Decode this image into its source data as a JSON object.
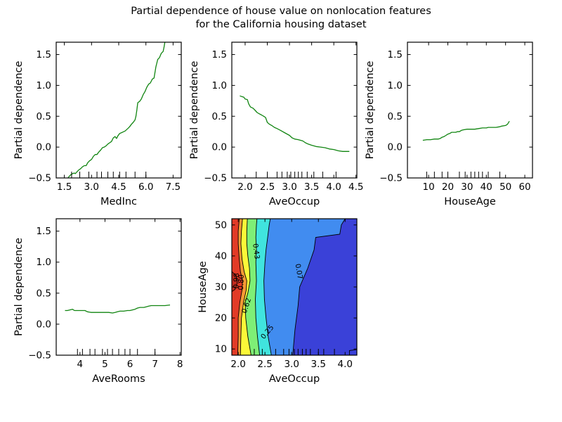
{
  "figure": {
    "title_line1": "Partial dependence of house value on nonlocation features",
    "title_line2": "for the California housing dataset",
    "background_color": "#ffffff",
    "line_color": "#118511",
    "axis_color": "#000000"
  },
  "chart_data": [
    {
      "id": "MedInc",
      "type": "line",
      "title": "",
      "xlabel": "MedInc",
      "ylabel": "Partial dependence",
      "xlim": [
        1.05,
        7.95
      ],
      "ylim": [
        -0.5,
        1.7
      ],
      "xticks": [
        1.5,
        3.0,
        4.5,
        6.0,
        7.5
      ],
      "xtick_labels": [
        "1.5",
        "3.0",
        "4.5",
        "6.0",
        "7.5"
      ],
      "yticks": [
        -0.5,
        0.0,
        0.5,
        1.0,
        1.5
      ],
      "ytick_labels": [
        "−0.5",
        "0.0",
        "0.5",
        "1.0",
        "1.5"
      ],
      "deciles": [
        1.9,
        2.35,
        2.85,
        3.3,
        3.55,
        3.9,
        4.2,
        4.55,
        4.9,
        5.4,
        6.0
      ],
      "points": [
        [
          1.63,
          -0.52
        ],
        [
          1.7,
          -0.5
        ],
        [
          1.78,
          -0.47
        ],
        [
          1.85,
          -0.45
        ],
        [
          1.95,
          -0.43
        ],
        [
          2.05,
          -0.42
        ],
        [
          2.1,
          -0.43
        ],
        [
          2.2,
          -0.4
        ],
        [
          2.3,
          -0.37
        ],
        [
          2.4,
          -0.35
        ],
        [
          2.5,
          -0.32
        ],
        [
          2.6,
          -0.3
        ],
        [
          2.7,
          -0.3
        ],
        [
          2.8,
          -0.25
        ],
        [
          2.9,
          -0.22
        ],
        [
          3.0,
          -0.2
        ],
        [
          3.1,
          -0.15
        ],
        [
          3.2,
          -0.12
        ],
        [
          3.3,
          -0.12
        ],
        [
          3.4,
          -0.08
        ],
        [
          3.5,
          -0.05
        ],
        [
          3.6,
          -0.01
        ],
        [
          3.7,
          0.0
        ],
        [
          3.8,
          0.02
        ],
        [
          3.9,
          0.05
        ],
        [
          4.0,
          0.07
        ],
        [
          4.1,
          0.09
        ],
        [
          4.2,
          0.15
        ],
        [
          4.3,
          0.17
        ],
        [
          4.38,
          0.14
        ],
        [
          4.45,
          0.18
        ],
        [
          4.55,
          0.22
        ],
        [
          4.7,
          0.24
        ],
        [
          4.85,
          0.26
        ],
        [
          5.0,
          0.3
        ],
        [
          5.1,
          0.33
        ],
        [
          5.2,
          0.37
        ],
        [
          5.3,
          0.4
        ],
        [
          5.4,
          0.44
        ],
        [
          5.45,
          0.5
        ],
        [
          5.5,
          0.6
        ],
        [
          5.55,
          0.72
        ],
        [
          5.65,
          0.74
        ],
        [
          5.75,
          0.78
        ],
        [
          5.85,
          0.85
        ],
        [
          5.95,
          0.9
        ],
        [
          6.05,
          0.97
        ],
        [
          6.15,
          1.02
        ],
        [
          6.25,
          1.04
        ],
        [
          6.35,
          1.1
        ],
        [
          6.45,
          1.12
        ],
        [
          6.55,
          1.3
        ],
        [
          6.65,
          1.42
        ],
        [
          6.75,
          1.45
        ],
        [
          6.85,
          1.52
        ],
        [
          6.95,
          1.55
        ],
        [
          7.0,
          1.62
        ],
        [
          7.06,
          1.72
        ]
      ]
    },
    {
      "id": "AveOccup",
      "type": "line",
      "title": "",
      "xlabel": "AveOccup",
      "ylabel": "Partial dependence",
      "xlim": [
        1.7,
        4.52
      ],
      "ylim": [
        -0.5,
        1.7
      ],
      "xticks": [
        2.0,
        2.5,
        3.0,
        3.5,
        4.0,
        4.5
      ],
      "xtick_labels": [
        "2.0",
        "2.5",
        "3.0",
        "3.5",
        "4.0",
        "4.5"
      ],
      "yticks": [
        -0.5,
        0.0,
        0.5,
        1.0,
        1.5
      ],
      "ytick_labels": [
        "−0.5",
        "0.0",
        "0.5",
        "1.0",
        "1.5"
      ],
      "deciles": [
        2.25,
        2.5,
        2.72,
        2.83,
        2.95,
        3.03,
        3.12,
        3.2,
        3.28,
        3.4,
        3.55,
        3.75,
        4.05
      ],
      "points": [
        [
          1.88,
          0.83
        ],
        [
          1.92,
          0.82
        ],
        [
          1.97,
          0.81
        ],
        [
          2.0,
          0.78
        ],
        [
          2.05,
          0.77
        ],
        [
          2.08,
          0.7
        ],
        [
          2.12,
          0.65
        ],
        [
          2.18,
          0.63
        ],
        [
          2.22,
          0.6
        ],
        [
          2.27,
          0.56
        ],
        [
          2.32,
          0.54
        ],
        [
          2.37,
          0.52
        ],
        [
          2.42,
          0.5
        ],
        [
          2.46,
          0.48
        ],
        [
          2.5,
          0.4
        ],
        [
          2.55,
          0.37
        ],
        [
          2.6,
          0.35
        ],
        [
          2.66,
          0.32
        ],
        [
          2.72,
          0.3
        ],
        [
          2.8,
          0.27
        ],
        [
          2.9,
          0.23
        ],
        [
          3.0,
          0.19
        ],
        [
          3.06,
          0.15
        ],
        [
          3.12,
          0.13
        ],
        [
          3.2,
          0.12
        ],
        [
          3.3,
          0.1
        ],
        [
          3.36,
          0.07
        ],
        [
          3.42,
          0.05
        ],
        [
          3.5,
          0.03
        ],
        [
          3.6,
          0.01
        ],
        [
          3.7,
          0.0
        ],
        [
          3.8,
          -0.01
        ],
        [
          3.9,
          -0.03
        ],
        [
          4.0,
          -0.04
        ],
        [
          4.1,
          -0.06
        ],
        [
          4.2,
          -0.07
        ],
        [
          4.35,
          -0.07
        ]
      ]
    },
    {
      "id": "HouseAge",
      "type": "line",
      "title": "",
      "xlabel": "HouseAge",
      "ylabel": "Partial dependence",
      "xlim": [
        -1,
        64
      ],
      "ylim": [
        -0.5,
        1.7
      ],
      "xticks": [
        10,
        20,
        30,
        40,
        50,
        60
      ],
      "xtick_labels": [
        "10",
        "20",
        "30",
        "40",
        "50",
        "60"
      ],
      "yticks": [
        -0.5,
        0.0,
        0.5,
        1.0,
        1.5
      ],
      "ytick_labels": [
        "−0.5",
        "0.0",
        "0.5",
        "1.0",
        "1.5"
      ],
      "deciles": [
        9,
        13,
        17,
        20,
        26,
        29,
        32,
        34,
        36,
        38,
        41,
        47
      ],
      "points": [
        [
          7,
          0.11
        ],
        [
          9,
          0.12
        ],
        [
          11,
          0.12
        ],
        [
          13,
          0.13
        ],
        [
          15,
          0.13
        ],
        [
          16,
          0.14
        ],
        [
          17,
          0.16
        ],
        [
          18,
          0.17
        ],
        [
          19,
          0.19
        ],
        [
          20,
          0.21
        ],
        [
          21,
          0.22
        ],
        [
          22,
          0.24
        ],
        [
          24,
          0.24
        ],
        [
          25,
          0.25
        ],
        [
          26,
          0.25
        ],
        [
          27,
          0.27
        ],
        [
          28,
          0.28
        ],
        [
          30,
          0.29
        ],
        [
          32,
          0.29
        ],
        [
          34,
          0.29
        ],
        [
          36,
          0.3
        ],
        [
          38,
          0.31
        ],
        [
          40,
          0.31
        ],
        [
          41,
          0.32
        ],
        [
          43,
          0.32
        ],
        [
          45,
          0.32
        ],
        [
          47,
          0.33
        ],
        [
          48,
          0.34
        ],
        [
          50,
          0.35
        ],
        [
          51,
          0.37
        ],
        [
          52,
          0.42
        ]
      ]
    },
    {
      "id": "AveRooms",
      "type": "line",
      "title": "",
      "xlabel": "AveRooms",
      "ylabel": "Partial dependence",
      "xlim": [
        3.05,
        8.05
      ],
      "ylim": [
        -0.5,
        1.7
      ],
      "xticks": [
        4,
        5,
        6,
        7,
        8
      ],
      "xtick_labels": [
        "4",
        "5",
        "6",
        "7",
        "8"
      ],
      "yticks": [
        -0.5,
        0.0,
        0.5,
        1.0,
        1.5
      ],
      "ytick_labels": [
        "−0.5",
        "0.0",
        "0.5",
        "1.0",
        "1.5"
      ],
      "deciles": [
        3.9,
        4.1,
        4.4,
        4.6,
        4.9,
        5.1,
        5.3,
        5.55,
        5.8,
        6.0,
        6.3,
        7.0
      ],
      "points": [
        [
          3.4,
          0.22
        ],
        [
          3.5,
          0.22
        ],
        [
          3.6,
          0.23
        ],
        [
          3.7,
          0.24
        ],
        [
          3.78,
          0.22
        ],
        [
          3.9,
          0.22
        ],
        [
          4.0,
          0.22
        ],
        [
          4.1,
          0.22
        ],
        [
          4.2,
          0.22
        ],
        [
          4.3,
          0.2
        ],
        [
          4.45,
          0.19
        ],
        [
          4.6,
          0.19
        ],
        [
          4.8,
          0.19
        ],
        [
          5.0,
          0.19
        ],
        [
          5.15,
          0.19
        ],
        [
          5.3,
          0.18
        ],
        [
          5.4,
          0.19
        ],
        [
          5.5,
          0.2
        ],
        [
          5.6,
          0.21
        ],
        [
          5.75,
          0.21
        ],
        [
          5.9,
          0.22
        ],
        [
          6.0,
          0.22
        ],
        [
          6.1,
          0.23
        ],
        [
          6.2,
          0.24
        ],
        [
          6.3,
          0.26
        ],
        [
          6.4,
          0.27
        ],
        [
          6.55,
          0.27
        ],
        [
          6.65,
          0.28
        ],
        [
          6.75,
          0.29
        ],
        [
          6.85,
          0.3
        ],
        [
          7.0,
          0.3
        ],
        [
          7.2,
          0.3
        ],
        [
          7.4,
          0.3
        ],
        [
          7.6,
          0.31
        ]
      ]
    },
    {
      "id": "contour",
      "type": "contour",
      "title": "",
      "xlabel": "AveOccup",
      "ylabel": "HouseAge",
      "xlim": [
        1.88,
        4.22
      ],
      "ylim": [
        8,
        52
      ],
      "xticks": [
        2.0,
        2.5,
        3.0,
        3.5,
        4.0
      ],
      "xtick_labels": [
        "2.0",
        "2.5",
        "3.0",
        "3.5",
        "4.0"
      ],
      "yticks": [
        10,
        20,
        30,
        40,
        50
      ],
      "ytick_labels": [
        "10",
        "20",
        "30",
        "40",
        "50"
      ],
      "deciles": [
        2.3,
        2.45,
        2.7,
        2.85,
        2.95,
        3.05,
        3.12,
        3.2,
        3.27,
        3.35,
        3.5,
        3.6,
        3.8
      ],
      "levels": [
        0.07,
        0.25,
        0.43,
        0.62,
        0.8,
        0.98
      ],
      "base_color": "#3a41d8",
      "bands": [
        {
          "level": 0.07,
          "fill": "#418cf0",
          "pts": [
            [
              3.02,
              8
            ],
            [
              3.06,
              16
            ],
            [
              3.12,
              24
            ],
            [
              3.15,
              30
            ],
            [
              3.3,
              36
            ],
            [
              3.42,
              42
            ],
            [
              3.45,
              46
            ],
            [
              3.9,
              47
            ],
            [
              3.93,
              50
            ],
            [
              4.0,
              52
            ]
          ]
        },
        {
          "level": 0.25,
          "fill": "#40e4de",
          "pts": [
            [
              2.62,
              8
            ],
            [
              2.56,
              14
            ],
            [
              2.52,
              20
            ],
            [
              2.49,
              26
            ],
            [
              2.48,
              32
            ],
            [
              2.5,
              38
            ],
            [
              2.52,
              42
            ],
            [
              2.55,
              46
            ],
            [
              2.58,
              50
            ],
            [
              2.6,
              52
            ]
          ]
        },
        {
          "level": 0.43,
          "fill": "#7eef76",
          "pts": [
            [
              2.4,
              8
            ],
            [
              2.36,
              14
            ],
            [
              2.33,
              20
            ],
            [
              2.32,
              26
            ],
            [
              2.34,
              32
            ],
            [
              2.33,
              38
            ],
            [
              2.34,
              42
            ],
            [
              2.33,
              46
            ],
            [
              2.34,
              50
            ],
            [
              2.35,
              52
            ]
          ]
        },
        {
          "level": 0.62,
          "fill": "#fbf838",
          "pts": [
            [
              2.24,
              8
            ],
            [
              2.18,
              14
            ],
            [
              2.14,
              20
            ],
            [
              2.13,
              25
            ],
            [
              2.18,
              28
            ],
            [
              2.22,
              32
            ],
            [
              2.21,
              36
            ],
            [
              2.18,
              40
            ],
            [
              2.16,
              44
            ],
            [
              2.16,
              48
            ],
            [
              2.17,
              52
            ]
          ]
        },
        {
          "level": 0.8,
          "fill": "#f89a35",
          "pts": [
            [
              2.04,
              8
            ],
            [
              2.05,
              14
            ],
            [
              2.06,
              20
            ],
            [
              2.1,
              25
            ],
            [
              2.15,
              29
            ],
            [
              2.16,
              32
            ],
            [
              2.11,
              35
            ],
            [
              2.07,
              39
            ],
            [
              2.05,
              44
            ],
            [
              2.06,
              48
            ],
            [
              2.08,
              52
            ]
          ]
        },
        {
          "level": 0.98,
          "fill": "#e23b27",
          "pts": [
            [
              1.99,
              8
            ],
            [
              2.0,
              14
            ],
            [
              2.0,
              20
            ],
            [
              2.03,
              25
            ],
            [
              2.07,
              29
            ],
            [
              2.08,
              32
            ],
            [
              2.04,
              35
            ],
            [
              2.02,
              39
            ],
            [
              2.0,
              44
            ],
            [
              2.0,
              48
            ],
            [
              2.02,
              52
            ]
          ]
        },
        {
          "level": 1.16,
          "fill": "#c32a1d",
          "closed": true,
          "pts": [
            [
              1.88,
              28.5
            ],
            [
              1.94,
              29.2
            ],
            [
              1.97,
              30.5
            ],
            [
              1.98,
              32
            ],
            [
              1.96,
              33.5
            ],
            [
              1.92,
              34.3
            ],
            [
              1.88,
              35
            ]
          ]
        }
      ],
      "corner_line": [
        [
          4.08,
          8
        ],
        [
          4.08,
          9.5
        ],
        [
          4.22,
          9.8
        ]
      ],
      "labels": [
        {
          "text": "0.07",
          "x": 3.14,
          "y": 35,
          "rot": 80
        },
        {
          "text": "0.25",
          "x": 2.54,
          "y": 15.5,
          "rot": -50
        },
        {
          "text": "0.43",
          "x": 2.34,
          "y": 41.5,
          "rot": 83
        },
        {
          "text": "0.62",
          "x": 2.15,
          "y": 24,
          "rot": -72
        },
        {
          "text": "0.80",
          "x": 2.05,
          "y": 31.5,
          "rot": -88
        },
        {
          "text": "0.98",
          "x": 1.96,
          "y": 32,
          "rot": -88
        }
      ]
    }
  ]
}
